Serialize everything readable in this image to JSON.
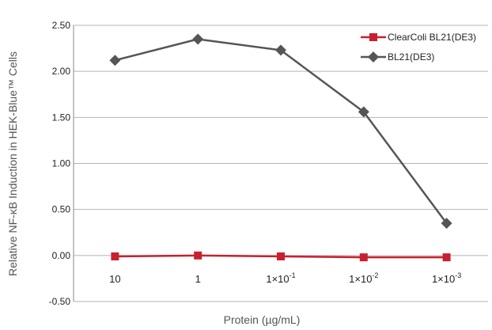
{
  "chart_data": {
    "type": "line",
    "categories": [
      "10",
      "1",
      "1×10⁻¹",
      "1×10⁻²",
      "1×10⁻³"
    ],
    "category_parts": [
      {
        "base": "10",
        "exp": ""
      },
      {
        "base": "1",
        "exp": ""
      },
      {
        "base": "1×10",
        "exp": "-1"
      },
      {
        "base": "1×10",
        "exp": "-2"
      },
      {
        "base": "1×10",
        "exp": "-3"
      }
    ],
    "series": [
      {
        "name": "ClearColi BL21(DE3)",
        "values": [
          -0.01,
          0.0,
          -0.01,
          -0.02,
          -0.02
        ],
        "color": "#c8202f",
        "marker": "square"
      },
      {
        "name": "BL21(DE3)",
        "values": [
          2.12,
          2.35,
          2.23,
          1.56,
          0.35
        ],
        "color": "#555555",
        "marker": "diamond"
      }
    ],
    "xlabel": "Protein (µg/mL)",
    "ylabel": "Relative NF-κB Induction in HEK-Blue™ Cells",
    "ylim": [
      -0.5,
      2.5
    ],
    "yticks": [
      "2.50",
      "2.00",
      "1.50",
      "1.00",
      "0.50",
      "0.00",
      "-0.50"
    ],
    "grid": true,
    "legend": "top-right"
  }
}
